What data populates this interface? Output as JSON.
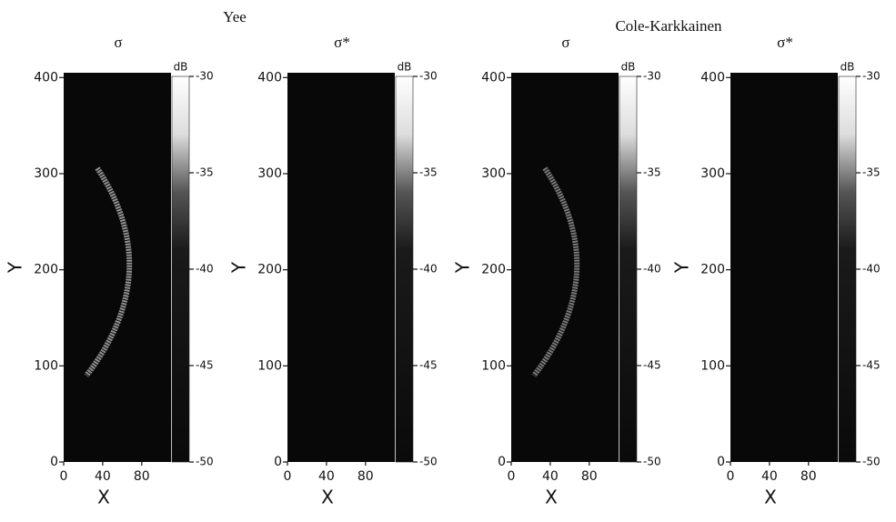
{
  "figure_titles": [
    "Yee",
    "Cole-Karkkainen"
  ],
  "chart_data": [
    {
      "type": "heatmap",
      "title": "σ",
      "xlabel": "X",
      "ylabel": "Y",
      "xlim": [
        0,
        110
      ],
      "ylim": [
        0,
        405
      ],
      "xticks": [
        0,
        40,
        80
      ],
      "yticks": [
        0,
        100,
        200,
        300,
        400
      ],
      "colorbar_label": "dB",
      "clim": [
        -50,
        -30
      ],
      "cticks": [
        -30,
        -35,
        -40,
        -45,
        -50
      ]
    },
    {
      "type": "heatmap",
      "title": "σ*",
      "xlabel": "X",
      "ylabel": "Y",
      "xlim": [
        0,
        110
      ],
      "ylim": [
        0,
        405
      ],
      "xticks": [
        0,
        40,
        80
      ],
      "yticks": [
        0,
        100,
        200,
        300,
        400
      ],
      "colorbar_label": "dB",
      "clim": [
        -50,
        -30
      ],
      "cticks": [
        -30,
        -35,
        -40,
        -45,
        -50
      ]
    },
    {
      "type": "heatmap",
      "title": "σ",
      "xlabel": "X",
      "ylabel": "Y",
      "xlim": [
        0,
        110
      ],
      "ylim": [
        0,
        405
      ],
      "xticks": [
        0,
        40,
        80
      ],
      "yticks": [
        0,
        100,
        200,
        300,
        400
      ],
      "colorbar_label": "dB",
      "clim": [
        -50,
        -30
      ],
      "cticks": [
        -30,
        -35,
        -40,
        -45,
        -50
      ]
    },
    {
      "type": "heatmap",
      "title": "σ*",
      "xlabel": "X",
      "ylabel": "Y",
      "xlim": [
        0,
        110
      ],
      "ylim": [
        0,
        405
      ],
      "xticks": [
        0,
        40,
        80
      ],
      "yticks": [
        0,
        100,
        200,
        300,
        400
      ],
      "colorbar_label": "dB",
      "clim": [
        -50,
        -30
      ],
      "cticks": [
        -30,
        -35,
        -40,
        -45,
        -50
      ]
    }
  ]
}
